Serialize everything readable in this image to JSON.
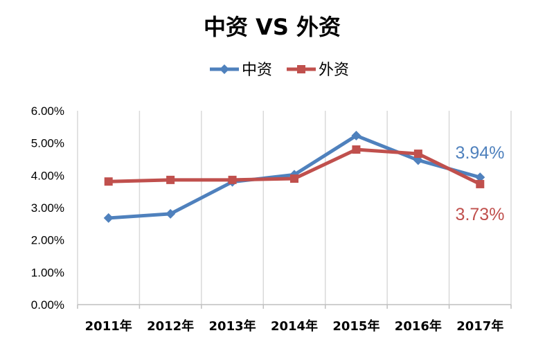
{
  "chart_data": {
    "type": "line",
    "title": "中资 VS 外资",
    "x": [
      "2011年",
      "2012年",
      "2013年",
      "2014年",
      "2015年",
      "2016年",
      "2017年"
    ],
    "y_ticks": [
      "0.00%",
      "1.00%",
      "2.00%",
      "3.00%",
      "4.00%",
      "5.00%",
      "6.00%"
    ],
    "ylim": [
      0,
      6
    ],
    "grid": "vertical",
    "legend": "top-center",
    "series": [
      {
        "name": "中资",
        "color": "#4f81bd",
        "marker": "diamond",
        "values": [
          2.68,
          2.81,
          3.8,
          4.02,
          5.23,
          4.47,
          3.94
        ]
      },
      {
        "name": "外资",
        "color": "#c0504d",
        "marker": "square",
        "values": [
          3.81,
          3.86,
          3.86,
          3.9,
          4.8,
          4.67,
          3.73
        ]
      }
    ],
    "annotations": [
      {
        "series": "中资",
        "text": "3.94%"
      },
      {
        "series": "外资",
        "text": "3.73%"
      }
    ]
  }
}
